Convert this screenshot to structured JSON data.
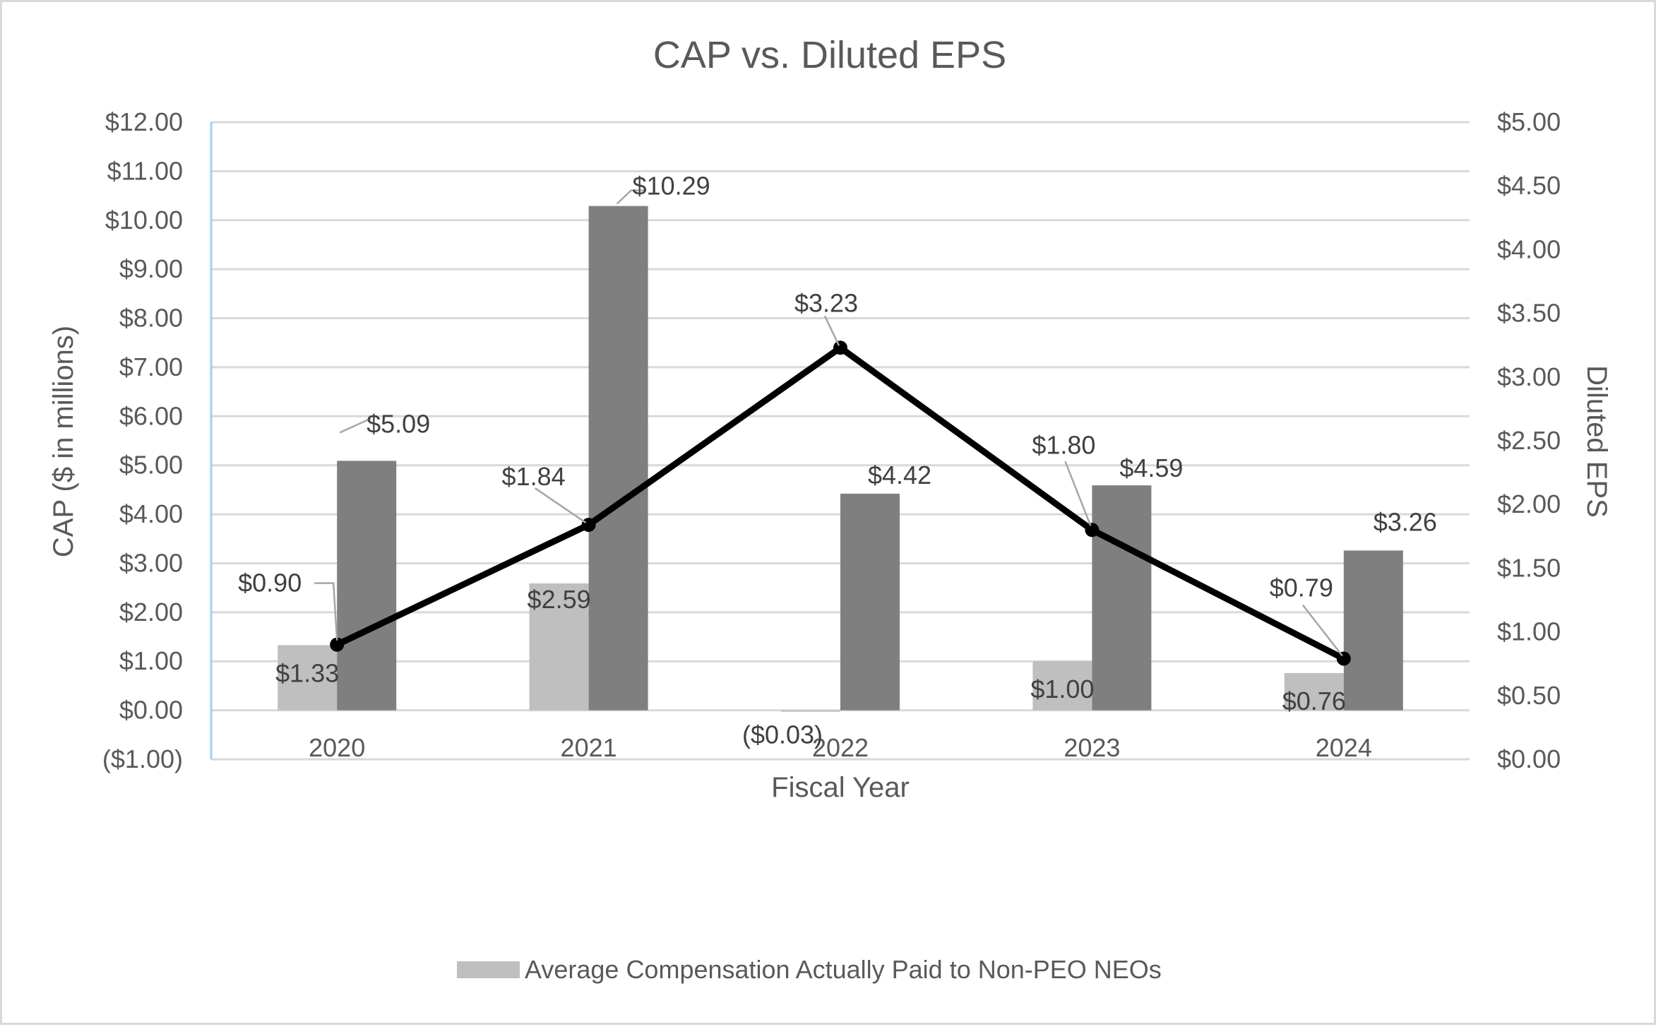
{
  "chart_data": {
    "type": "bar",
    "title": "CAP vs. Diluted EPS",
    "xlabel": "Fiscal Year",
    "ylabel": "CAP ($ in millions)",
    "y2label": "Diluted EPS",
    "categories": [
      "2020",
      "2021",
      "2022",
      "2023",
      "2024"
    ],
    "ylim": [
      -1,
      12
    ],
    "y_ticks": [
      -1,
      0,
      1,
      2,
      3,
      4,
      5,
      6,
      7,
      8,
      9,
      10,
      11,
      12
    ],
    "y_tick_labels": [
      "($1.00)",
      "$0.00",
      "$1.00",
      "$2.00",
      "$3.00",
      "$4.00",
      "$5.00",
      "$6.00",
      "$7.00",
      "$8.00",
      "$9.00",
      "$10.00",
      "$11.00",
      "$12.00"
    ],
    "y2lim": [
      0,
      5
    ],
    "y2_ticks": [
      0,
      0.5,
      1,
      1.5,
      2,
      2.5,
      3,
      3.5,
      4,
      4.5,
      5
    ],
    "y2_tick_labels": [
      "$0.00",
      "$0.50",
      "$1.00",
      "$1.50",
      "$2.00",
      "$2.50",
      "$3.00",
      "$3.50",
      "$4.00",
      "$4.50",
      "$5.00"
    ],
    "grid": true,
    "series": [
      {
        "name": "Average Compensation Actually Paid to Non-PEO NEOs",
        "type": "bar",
        "axis": "left",
        "color": "#bfbfbf",
        "values": [
          1.33,
          2.59,
          -0.03,
          1.0,
          0.76
        ],
        "labels": [
          "$1.33",
          "$2.59",
          "($0.03)",
          "$1.00",
          "$0.76"
        ],
        "in_legend": true
      },
      {
        "name": "",
        "type": "bar",
        "axis": "left",
        "color": "#7f7f7f",
        "values": [
          5.09,
          10.29,
          4.42,
          4.59,
          3.26
        ],
        "labels": [
          "$5.09",
          "$10.29",
          "$4.42",
          "$4.59",
          "$3.26"
        ],
        "in_legend": false
      },
      {
        "name": "",
        "type": "line",
        "axis": "right",
        "color": "#000000",
        "values": [
          0.9,
          1.84,
          3.23,
          1.8,
          0.79
        ],
        "labels": [
          "$0.90",
          "$1.84",
          "$3.23",
          "$1.80",
          "$0.79"
        ],
        "in_legend": false
      }
    ],
    "legend": {
      "position": "bottom",
      "entries": [
        "Average Compensation Actually Paid to Non-PEO NEOs"
      ]
    },
    "colors": {
      "text": "#595959",
      "gridline": "#d9d9d9",
      "left_axis_line": "#9dd3ec",
      "leader_line": "#a6a6a6"
    }
  }
}
